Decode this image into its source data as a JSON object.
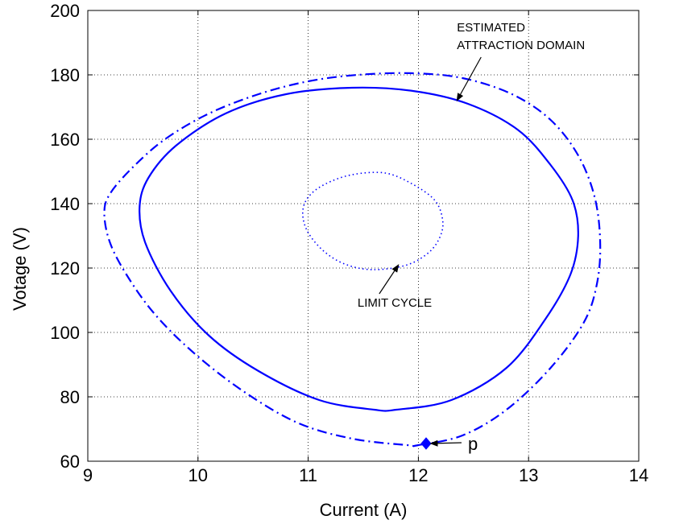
{
  "chart_data": {
    "type": "line",
    "title": "",
    "xlabel": "Current (A)",
    "ylabel": "Votage (V)",
    "xlim": [
      9,
      14
    ],
    "ylim": [
      60,
      200
    ],
    "xticks": [
      9,
      10,
      11,
      12,
      13,
      14
    ],
    "yticks": [
      60,
      80,
      100,
      120,
      140,
      160,
      180,
      200
    ],
    "grid": true,
    "line_color": "#0000ff",
    "series": [
      {
        "style": "dashdot",
        "closed": true,
        "x": [
          12.0,
          12.4,
          12.8,
          13.2,
          13.5,
          13.62,
          13.65,
          13.6,
          13.45,
          13.2,
          12.85,
          12.4,
          11.95,
          11.45,
          11.0,
          10.55,
          10.1,
          9.7,
          9.4,
          9.2,
          9.15,
          9.2,
          9.35,
          9.6,
          9.95,
          10.4,
          10.9,
          11.4,
          11.9,
          12.0
        ],
        "y": [
          65,
          68,
          76,
          89,
          103,
          115,
          128,
          142,
          155,
          166,
          174,
          179,
          180.5,
          180,
          178,
          174,
          168,
          160,
          151,
          143,
          137,
          128,
          118,
          106,
          94,
          82,
          72,
          67,
          65,
          65
        ]
      },
      {
        "style": "solid",
        "closed": true,
        "x": [
          11.8,
          12.3,
          12.8,
          13.15,
          13.38,
          13.45,
          13.4,
          13.2,
          12.9,
          12.45,
          11.95,
          11.4,
          10.8,
          10.25,
          9.8,
          9.55,
          9.47,
          9.52,
          9.75,
          10.1,
          10.55,
          11.1,
          11.6,
          11.8
        ],
        "y": [
          76,
          79,
          89,
          104,
          118,
          130,
          141,
          152,
          163,
          171,
          175,
          176,
          174,
          168,
          158,
          148,
          139,
          128,
          113,
          99,
          88,
          79,
          76,
          76
        ]
      },
      {
        "style": "dotted",
        "closed": true,
        "x": [
          11.6,
          11.9,
          12.1,
          12.2,
          12.22,
          12.15,
          11.95,
          11.7,
          11.4,
          11.15,
          11.0,
          10.95,
          11.0,
          11.15,
          11.35,
          11.6
        ],
        "y": [
          119.5,
          121,
          125,
          130,
          135,
          141,
          146,
          149.5,
          149,
          146,
          142,
          137,
          131,
          125,
          121,
          119.5
        ]
      }
    ],
    "points": [
      {
        "label": "p",
        "x": 12.07,
        "y": 65.5
      }
    ],
    "annotations": [
      {
        "lines": [
          "ESTIMATED",
          "ATTRACTION DOMAIN"
        ],
        "arrow_to": {
          "x": 12.35,
          "y": 172
        },
        "text_at": {
          "x": 12.35,
          "y": 187
        }
      },
      {
        "lines": [
          "LIMIT CYCLE"
        ],
        "arrow_to": {
          "x": 11.82,
          "y": 121
        },
        "text_at": {
          "x": 11.85,
          "y": 108
        }
      },
      {
        "lines": [
          "p"
        ],
        "arrow_to": {
          "x": 12.11,
          "y": 65.5
        },
        "text_at": {
          "x": 12.45,
          "y": 65
        }
      }
    ]
  }
}
